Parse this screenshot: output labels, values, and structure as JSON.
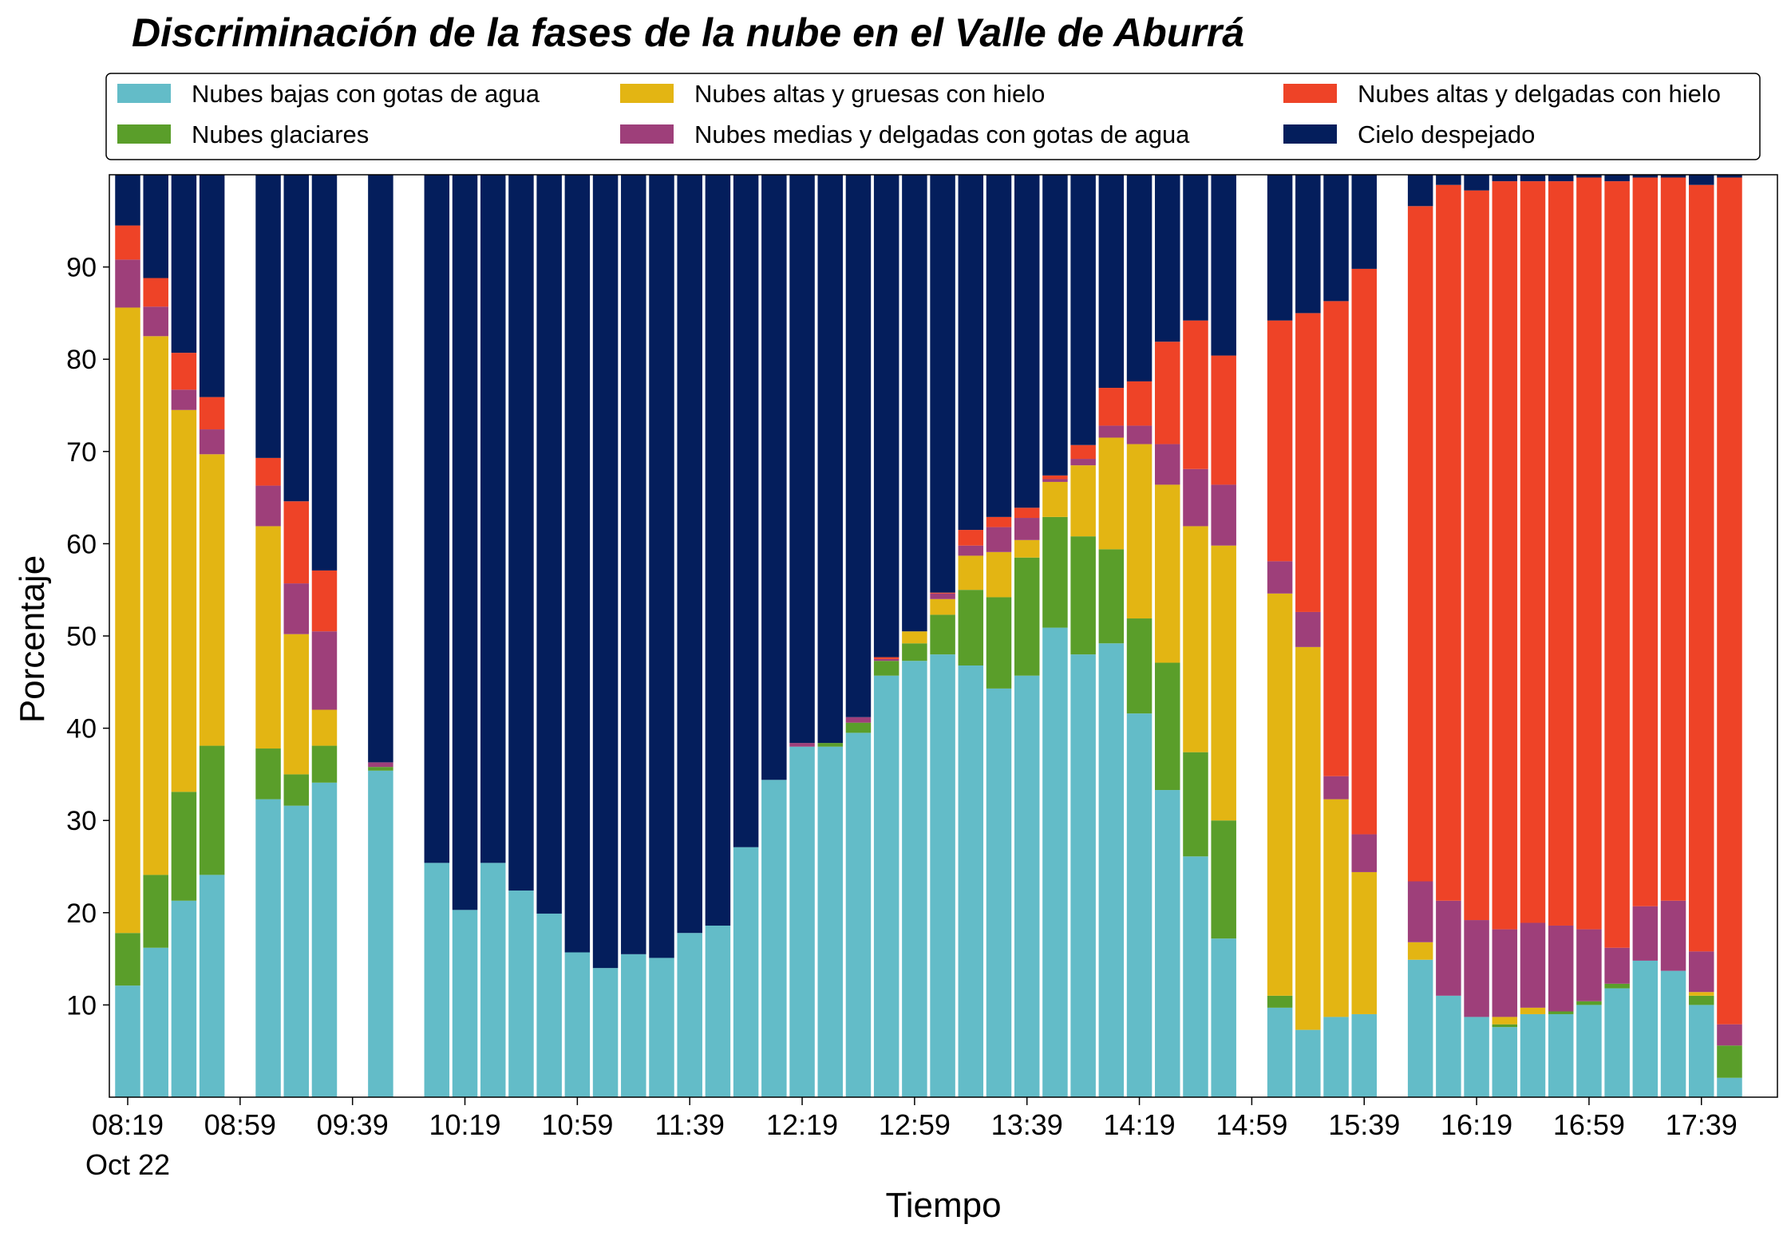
{
  "chart_data": {
    "type": "stacked_bar",
    "title": "Discriminación de la fases de la nube en el Valle de Aburrá",
    "x_label": "Tiempo",
    "y_label": "Porcentaje",
    "date_label": "Oct 22",
    "categories": [
      "08:19",
      "08:29",
      "08:39",
      "08:49",
      "08:59",
      "09:09",
      "09:19",
      "09:29",
      "09:39",
      "09:49",
      "09:59",
      "10:09",
      "10:19",
      "10:29",
      "10:39",
      "10:49",
      "10:59",
      "11:09",
      "11:19",
      "11:29",
      "11:39",
      "11:49",
      "11:59",
      "12:09",
      "12:19",
      "12:29",
      "12:39",
      "12:49",
      "12:59",
      "13:09",
      "13:19",
      "13:29",
      "13:39",
      "13:49",
      "13:59",
      "14:09",
      "14:19",
      "14:29",
      "14:39",
      "14:49",
      "14:59",
      "15:09",
      "15:19",
      "15:29",
      "15:39",
      "15:49",
      "15:59",
      "16:09",
      "16:19",
      "16:29",
      "16:39",
      "16:49",
      "16:59",
      "17:09",
      "17:19",
      "17:29",
      "17:39",
      "17:49"
    ],
    "xticks": [
      "08:19",
      "08:59",
      "09:39",
      "10:19",
      "10:59",
      "11:39",
      "12:19",
      "12:59",
      "13:39",
      "14:19",
      "14:59",
      "15:39",
      "16:19",
      "16:59",
      "17:39"
    ],
    "ylim": [
      0,
      100
    ],
    "yticks": [
      10,
      20,
      30,
      40,
      50,
      60,
      70,
      80,
      90
    ],
    "legend_position": "top",
    "series": [
      {
        "name": "Nubes bajas con gotas de agua",
        "color": "#63bcc8",
        "values": [
          12.1,
          16.2,
          21.3,
          24.1,
          null,
          32.3,
          31.6,
          34.1,
          null,
          35.4,
          null,
          25.4,
          20.3,
          25.4,
          22.4,
          19.9,
          15.7,
          14.0,
          15.5,
          15.1,
          17.8,
          18.6,
          27.1,
          34.4,
          38.0,
          38.0,
          39.5,
          45.7,
          47.3,
          48.0,
          46.8,
          44.3,
          45.7,
          50.9,
          48.0,
          49.2,
          41.6,
          33.3,
          26.1,
          17.2,
          null,
          9.7,
          7.3,
          8.7,
          9.0,
          null,
          14.9,
          11.0,
          8.7,
          7.6,
          9.0,
          9.0,
          10.0,
          11.8,
          14.8,
          13.7,
          10.0,
          2.1
        ]
      },
      {
        "name": "Nubes glaciares",
        "color": "#5a9e2a",
        "values": [
          5.7,
          7.9,
          11.8,
          14.0,
          null,
          5.5,
          3.4,
          4.0,
          null,
          0.4,
          null,
          0,
          0,
          0,
          0,
          0,
          0,
          0,
          0,
          0,
          0,
          0,
          0,
          0,
          0,
          0.4,
          1.1,
          1.6,
          1.9,
          4.3,
          8.2,
          9.9,
          12.8,
          12.0,
          12.8,
          10.2,
          10.3,
          13.8,
          11.3,
          12.8,
          null,
          1.3,
          0,
          0,
          0,
          null,
          0,
          0,
          0,
          0.3,
          0,
          0.3,
          0.4,
          0.5,
          0,
          0,
          1.0,
          3.5
        ]
      },
      {
        "name": "Nubes altas y gruesas con hielo",
        "color": "#e3b513",
        "values": [
          67.8,
          58.4,
          41.4,
          31.6,
          null,
          24.1,
          15.2,
          3.9,
          null,
          0,
          null,
          0,
          0,
          0,
          0,
          0,
          0,
          0,
          0,
          0,
          0,
          0,
          0,
          0,
          0,
          0,
          0,
          0,
          1.3,
          1.7,
          3.7,
          4.9,
          1.9,
          3.8,
          7.7,
          12.1,
          18.9,
          19.3,
          24.5,
          29.8,
          null,
          43.6,
          41.5,
          23.6,
          15.4,
          null,
          1.9,
          0,
          0,
          0.8,
          0.7,
          0,
          0,
          0,
          0,
          0,
          0.4,
          0
        ]
      },
      {
        "name": "Nubes medias y delgadas con gotas de agua",
        "color": "#9e3f7a",
        "values": [
          5.2,
          3.2,
          2.2,
          2.7,
          null,
          4.4,
          5.5,
          8.5,
          null,
          0.5,
          null,
          0,
          0,
          0,
          0,
          0,
          0,
          0,
          0,
          0,
          0,
          0,
          0,
          0,
          0.4,
          0,
          0.6,
          0.2,
          0,
          0.6,
          1.1,
          2.7,
          2.4,
          0.3,
          0.7,
          1.3,
          2.0,
          4.4,
          6.2,
          6.6,
          null,
          3.5,
          3.8,
          2.5,
          4.1,
          null,
          6.6,
          10.3,
          10.5,
          9.5,
          9.2,
          9.3,
          7.8,
          3.9,
          5.9,
          7.6,
          4.4,
          2.3
        ]
      },
      {
        "name": "Nubes altas y delgadas con hielo",
        "color": "#ee4327",
        "values": [
          3.7,
          3.1,
          4.0,
          3.5,
          null,
          3.0,
          8.9,
          6.6,
          null,
          0,
          null,
          0,
          0,
          0,
          0,
          0,
          0,
          0,
          0,
          0,
          0,
          0,
          0,
          0,
          0,
          0,
          0,
          0.2,
          0,
          0.1,
          1.7,
          1.1,
          1.1,
          0.4,
          1.5,
          4.1,
          4.8,
          11.1,
          16.1,
          14.0,
          null,
          26.1,
          32.4,
          51.5,
          61.3,
          null,
          73.2,
          77.6,
          79.1,
          81.1,
          80.4,
          80.7,
          81.5,
          83.1,
          79.0,
          78.4,
          83.1,
          91.8
        ]
      },
      {
        "name": "Cielo despejado",
        "color": "#041e5c",
        "values": [
          5.5,
          11.2,
          19.3,
          24.1,
          null,
          30.7,
          35.4,
          42.9,
          null,
          63.7,
          null,
          74.6,
          79.7,
          74.6,
          77.6,
          80.1,
          84.3,
          86.0,
          84.5,
          84.9,
          82.2,
          81.4,
          72.9,
          65.6,
          61.6,
          61.6,
          58.8,
          52.3,
          49.5,
          45.3,
          38.5,
          37.1,
          36.1,
          32.6,
          29.3,
          23.1,
          22.4,
          18.1,
          15.8,
          19.6,
          null,
          15.8,
          15.0,
          13.7,
          10.2,
          null,
          3.4,
          1.1,
          1.7,
          0.7,
          0.7,
          0.7,
          0.3,
          0.7,
          0.3,
          0.3,
          1.1,
          0.3
        ]
      }
    ]
  }
}
